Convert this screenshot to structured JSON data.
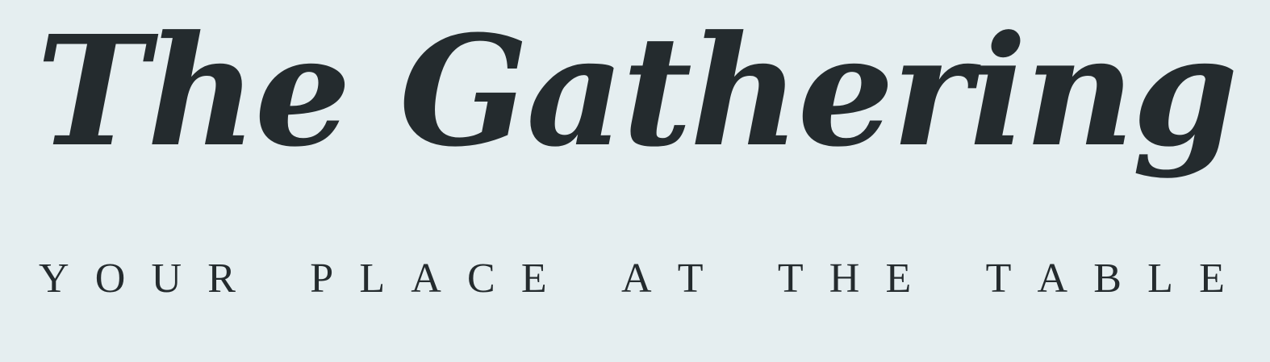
{
  "title": "The Gathering",
  "tagline": "YOUR PLACE AT THE TABLE",
  "colors": {
    "background": "#e5eef0",
    "text": "#242b2e"
  }
}
